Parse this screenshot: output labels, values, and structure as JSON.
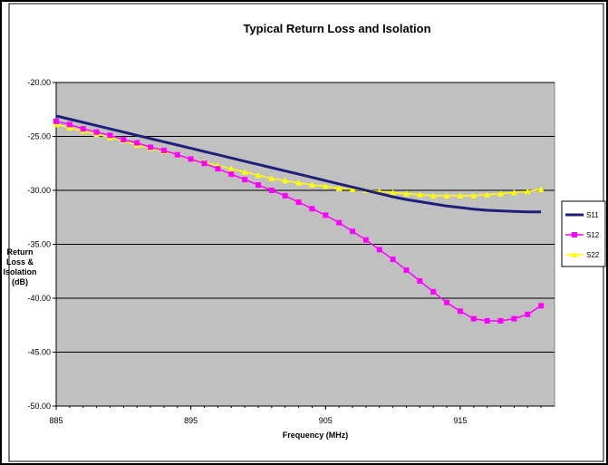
{
  "chart_data": {
    "type": "line",
    "title": "Typical Return Loss and Isolation",
    "xlabel": "Frequency (MHz)",
    "ylabel_lines": [
      "Return",
      "Loss &",
      "Isolation",
      "(dB)"
    ],
    "xlim": [
      885,
      922
    ],
    "ylim": [
      -50,
      -20
    ],
    "xticks": [
      885,
      895,
      905,
      915
    ],
    "xtick_labels": [
      "885",
      "895",
      "905",
      "915"
    ],
    "yticks": [
      -20,
      -25,
      -30,
      -35,
      -40,
      -45,
      -50
    ],
    "ytick_labels": [
      "-20.00",
      "-25.00",
      "-30.00",
      "-35.00",
      "-40.00",
      "-45.00",
      "-50.00"
    ],
    "grid": "horizontal",
    "legend": "right",
    "x": [
      885,
      886,
      887,
      888,
      889,
      890,
      891,
      892,
      893,
      894,
      895,
      896,
      897,
      898,
      899,
      900,
      901,
      902,
      903,
      904,
      905,
      906,
      907,
      908,
      909,
      910,
      911,
      912,
      913,
      914,
      915,
      916,
      917,
      918,
      919,
      920,
      921
    ],
    "series": [
      {
        "name": "S11",
        "color": "#1f1f7a",
        "marker": "none",
        "values": [
          -23.1,
          -23.4,
          -23.7,
          -24.0,
          -24.3,
          -24.6,
          -24.9,
          -25.2,
          -25.5,
          -25.8,
          -26.1,
          -26.4,
          -26.7,
          -27.0,
          -27.3,
          -27.6,
          -27.9,
          -28.2,
          -28.5,
          -28.8,
          -29.1,
          -29.4,
          -29.7,
          -30.0,
          -30.3,
          -30.6,
          -30.85,
          -31.05,
          -31.25,
          -31.45,
          -31.6,
          -31.75,
          -31.85,
          -31.9,
          -31.95,
          -32.0,
          -32.0
        ]
      },
      {
        "name": "S12",
        "color": "#ff00ff",
        "marker": "square",
        "values": [
          -23.6,
          -23.9,
          -24.3,
          -24.6,
          -24.9,
          -25.3,
          -25.6,
          -26.0,
          -26.3,
          -26.7,
          -27.1,
          -27.5,
          -28.0,
          -28.5,
          -29.0,
          -29.5,
          -30.0,
          -30.5,
          -31.1,
          -31.7,
          -32.3,
          -33.0,
          -33.8,
          -34.6,
          -35.5,
          -36.4,
          -37.4,
          -38.4,
          -39.4,
          -40.4,
          -41.2,
          -41.9,
          -42.1,
          -42.1,
          -41.9,
          -41.5,
          -40.7
        ]
      },
      {
        "name": "S22",
        "color": "#ffff00",
        "marker": "triangle",
        "values": [
          -23.9,
          -24.2,
          -24.5,
          -24.8,
          -25.1,
          -25.4,
          -25.8,
          -26.1,
          -26.4,
          -26.7,
          -27.1,
          -27.4,
          -27.7,
          -28.0,
          -28.3,
          -28.6,
          -28.9,
          -29.1,
          -29.3,
          -29.5,
          -29.6,
          -29.8,
          -29.9,
          -30.0,
          -30.1,
          -30.2,
          -30.3,
          -30.4,
          -30.5,
          -30.5,
          -30.5,
          -30.5,
          -30.4,
          -30.3,
          -30.2,
          -30.1,
          -29.9
        ]
      }
    ]
  }
}
